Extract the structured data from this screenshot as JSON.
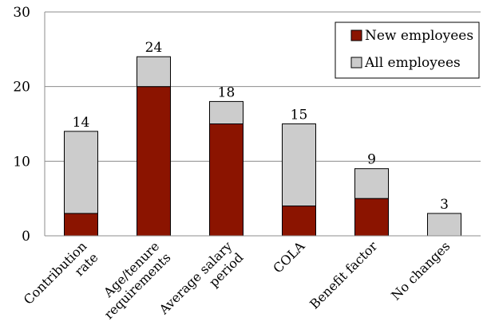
{
  "chart_data": {
    "type": "bar",
    "stacked": true,
    "title": "",
    "xlabel": "",
    "ylabel": "",
    "ylim": [
      0,
      30
    ],
    "yticks": [
      0,
      10,
      20,
      30
    ],
    "grid": true,
    "legend_position": "top-right",
    "categories": [
      [
        "Contribution",
        "rate"
      ],
      [
        "Age/tenure",
        "requirements"
      ],
      [
        "Average salary",
        "period"
      ],
      [
        "COLA"
      ],
      [
        "Benefit factor"
      ],
      [
        "No changes"
      ]
    ],
    "totals": [
      14,
      24,
      18,
      15,
      9,
      3
    ],
    "series": [
      {
        "name": "New employees",
        "values": [
          3,
          20,
          15,
          4,
          5,
          0
        ],
        "color": "#8b1400"
      },
      {
        "name": "All employees",
        "values": [
          11,
          4,
          3,
          11,
          4,
          3
        ],
        "color": "#cccccc"
      }
    ]
  }
}
